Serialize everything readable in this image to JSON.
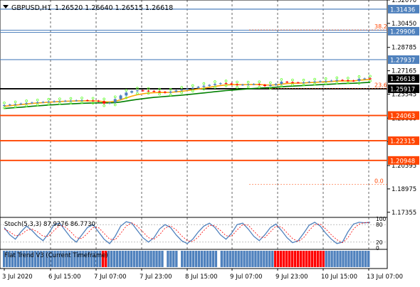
{
  "header": {
    "symbol": "GBPUSD,H1",
    "ohlc": "1.26520 1.26640 1.26515 1.26618"
  },
  "chart_data": [
    {
      "type": "candlestick",
      "symbol": "GBPUSD",
      "timeframe": "H1",
      "ylim": [
        1.17,
        1.3207
      ],
      "y_ticks": [
        1.3207,
        1.3045,
        1.28785,
        1.27165,
        1.25545,
        1.2388,
        1.2226,
        1.20595,
        1.18975,
        1.17355
      ],
      "x_ticks": [
        "3 Jul 2020",
        "6 Jul 15:00",
        "7 Jul 07:00",
        "7 Jul 23:00",
        "8 Jul 15:00",
        "9 Jul 07:00",
        "9 Jul 23:00",
        "10 Jul 15:00",
        "13 Jul 07:00"
      ],
      "grid": true,
      "price_series": [
        1.2478,
        1.2482,
        1.2485,
        1.2489,
        1.2492,
        1.2496,
        1.2498,
        1.25,
        1.2503,
        1.2505,
        1.2506,
        1.2508,
        1.2509,
        1.2511,
        1.2512,
        1.251,
        1.2508,
        1.2505,
        1.249,
        1.2496,
        1.252,
        1.2545,
        1.2565,
        1.2575,
        1.258,
        1.2578,
        1.2576,
        1.2573,
        1.257,
        1.2565,
        1.2572,
        1.258,
        1.2585,
        1.2592,
        1.2598,
        1.2605,
        1.2612,
        1.2618,
        1.2625,
        1.263,
        1.2628,
        1.2623,
        1.2618,
        1.262,
        1.2622,
        1.2624,
        1.2619,
        1.2611,
        1.2618,
        1.2625,
        1.264,
        1.2637,
        1.2635,
        1.2634,
        1.2636,
        1.264,
        1.2642,
        1.2644,
        1.2646,
        1.2648,
        1.2652,
        1.265,
        1.2648,
        1.2646,
        1.266,
        1.2663,
        1.2662
      ],
      "moving_averages": [
        {
          "color": "#ffa500",
          "values": [
            1.247,
            1.2474,
            1.2478,
            1.2482,
            1.2486,
            1.249,
            1.2493,
            1.2496,
            1.2499,
            1.2501,
            1.2503,
            1.2505,
            1.2506,
            1.2507,
            1.2508,
            1.2508,
            1.2507,
            1.2506,
            1.2502,
            1.25,
            1.2505,
            1.2515,
            1.2528,
            1.254,
            1.255,
            1.2557,
            1.2562,
            1.2565,
            1.2566,
            1.2566,
            1.2567,
            1.257,
            1.2574,
            1.2579,
            1.2584,
            1.259,
            1.2596,
            1.2602,
            1.2608,
            1.2614,
            1.2618,
            1.262,
            1.262,
            1.262,
            1.2621,
            1.2622,
            1.2621,
            1.2618,
            1.2617,
            1.2619,
            1.2624,
            1.2628,
            1.263,
            1.2631,
            1.2632,
            1.2634,
            1.2636,
            1.2638,
            1.264,
            1.2642,
            1.2645,
            1.2646,
            1.2646,
            1.2646,
            1.265,
            1.2654,
            1.2656
          ]
        },
        {
          "color": "#008000",
          "values": [
            1.2455,
            1.2458,
            1.2461,
            1.2464,
            1.2467,
            1.247,
            1.2473,
            1.2476,
            1.2479,
            1.2481,
            1.2483,
            1.2485,
            1.2487,
            1.2489,
            1.2491,
            1.2492,
            1.2493,
            1.2494,
            1.2494,
            1.2494,
            1.2496,
            1.25,
            1.2506,
            1.2512,
            1.2518,
            1.2523,
            1.2528,
            1.2532,
            1.2535,
            1.2538,
            1.2541,
            1.2544,
            1.2547,
            1.2551,
            1.2555,
            1.2559,
            1.2563,
            1.2567,
            1.2571,
            1.2575,
            1.2579,
            1.2582,
            1.2585,
            1.2588,
            1.2591,
            1.2594,
            1.2596,
            1.2598,
            1.26,
            1.2602,
            1.2605,
            1.2608,
            1.261,
            1.2612,
            1.2614,
            1.2616,
            1.2618,
            1.262,
            1.2622,
            1.2624,
            1.2626,
            1.2628,
            1.2629,
            1.263,
            1.2632,
            1.2634,
            1.2636
          ]
        }
      ],
      "horizontal_levels": [
        {
          "price": 1.31436,
          "label": "1.31436",
          "color": "#4f81bd",
          "style": "solid"
        },
        {
          "price": 1.29906,
          "label": "1.29906",
          "color": "#4f81bd",
          "style": "double"
        },
        {
          "price": 1.27937,
          "label": "1.27937",
          "color": "#4f81bd",
          "style": "solid"
        },
        {
          "price": 1.25917,
          "label": "1.25917",
          "color": "#000000",
          "style": "thick"
        },
        {
          "price": 1.24063,
          "label": "1.24063",
          "color": "#ff4500",
          "style": "thick"
        },
        {
          "price": 1.22315,
          "label": "1.22315",
          "color": "#ff4500",
          "style": "thick"
        },
        {
          "price": 1.20948,
          "label": "1.20948",
          "color": "#ff4500",
          "style": "thick"
        }
      ],
      "current_price": {
        "price": 1.26618,
        "label": "1.26618"
      },
      "fibonacci": [
        {
          "price": 1.3,
          "label": "38.2"
        },
        {
          "price": 1.2595,
          "label": "23.6"
        },
        {
          "price": 1.1929,
          "label": "0.0"
        }
      ]
    },
    {
      "type": "line",
      "label": "Stoch(5,3,3) 87.9276 86.7730",
      "ylim": [
        0,
        100
      ],
      "y_ticks": [
        100,
        80,
        20,
        0
      ],
      "series": [
        {
          "name": "main",
          "color": "#4f81bd",
          "values": [
            70,
            45,
            30,
            55,
            75,
            60,
            40,
            25,
            50,
            80,
            85,
            60,
            35,
            20,
            45,
            70,
            80,
            55,
            30,
            15,
            40,
            75,
            90,
            85,
            60,
            35,
            20,
            35,
            65,
            80,
            70,
            45,
            25,
            15,
            30,
            55,
            75,
            85,
            70,
            45,
            30,
            50,
            80,
            85,
            65,
            40,
            25,
            45,
            70,
            82,
            60,
            35,
            18,
            25,
            50,
            78,
            88,
            75,
            50,
            30,
            15,
            20,
            55,
            82,
            88,
            86,
            88
          ]
        },
        {
          "name": "signal",
          "color": "#ff0000",
          "values": [
            65,
            55,
            42,
            45,
            60,
            65,
            55,
            40,
            40,
            60,
            78,
            72,
            55,
            35,
            32,
            50,
            70,
            70,
            50,
            30,
            28,
            50,
            75,
            86,
            75,
            55,
            35,
            30,
            45,
            68,
            76,
            62,
            42,
            25,
            22,
            38,
            60,
            78,
            76,
            60,
            42,
            40,
            62,
            80,
            78,
            58,
            38,
            35,
            55,
            75,
            72,
            52,
            32,
            22,
            35,
            60,
            80,
            82,
            65,
            45,
            28,
            18,
            35,
            65,
            82,
            87,
            87
          ]
        }
      ]
    },
    {
      "type": "bar",
      "label": "Flat Trend V3 (Current Timeframe)",
      "note": "histogram colored by trend state",
      "states": [
        "b",
        "b",
        "b",
        "b",
        "b",
        "b",
        "b",
        "b",
        "b",
        "b",
        "b",
        "b",
        "b",
        "b",
        "b",
        "b",
        "b",
        "b",
        "b",
        "b",
        "b",
        "b",
        "b",
        "b",
        "b",
        "b",
        "b",
        "b",
        "b",
        "b",
        "b",
        "b",
        "b",
        "b",
        "b",
        "r",
        "r",
        "b",
        "b",
        "b",
        "b",
        "b",
        "b",
        "b",
        "b",
        "b",
        "b",
        "b",
        "b",
        "b",
        "b",
        "b",
        "b",
        "b",
        "b",
        "b",
        "b",
        "w",
        "b",
        "b",
        "b",
        "b",
        "w",
        "b",
        "b",
        "b",
        "b",
        "b",
        "b",
        "b",
        "b",
        "b",
        "b",
        "b",
        "b",
        "b",
        "w",
        "b",
        "b",
        "b",
        "b",
        "b",
        "b",
        "b",
        "b",
        "b",
        "b",
        "b",
        "b",
        "b",
        "b",
        "b",
        "b",
        "b",
        "b",
        "b",
        "r",
        "r",
        "r",
        "r",
        "r",
        "r",
        "r",
        "r",
        "r",
        "r",
        "r",
        "r",
        "r",
        "r",
        "r",
        "r",
        "r",
        "r",
        "b",
        "b",
        "b",
        "b",
        "b",
        "b",
        "b",
        "b",
        "b",
        "b",
        "b",
        "b",
        "b",
        "b",
        "b",
        "b"
      ],
      "colors": {
        "b": "#4f81bd",
        "r": "#ff0000",
        "w": "#ffffff"
      }
    }
  ]
}
